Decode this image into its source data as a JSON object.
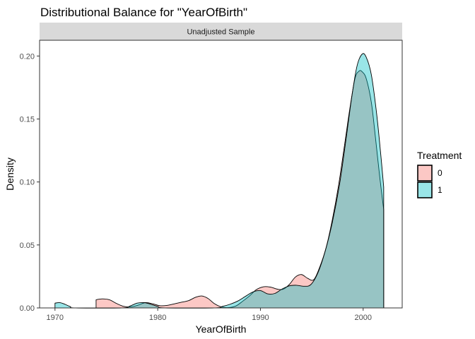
{
  "chart_data": {
    "type": "area",
    "title": "Distributional Balance for \"YearOfBirth\"",
    "facet_label": "Unadjusted Sample",
    "xlabel": "YearOfBirth",
    "ylabel": "Density",
    "xlim": [
      1968.5,
      2003.8
    ],
    "ylim": [
      0,
      0.2125
    ],
    "x_ticks": [
      1970,
      1980,
      1990,
      2000
    ],
    "y_ticks": [
      0.0,
      0.05,
      0.1,
      0.15,
      0.2
    ],
    "y_tick_labels": [
      "0.00",
      "0.05",
      "0.10",
      "0.15",
      "0.20"
    ],
    "grid": false,
    "legend": {
      "title": "Treatment",
      "placement": "right"
    },
    "series": [
      {
        "name": "0",
        "color": "#F8766D",
        "x": [
          1974,
          1974.6,
          1975.3,
          1976,
          1976.7,
          1977.4,
          1978.1,
          1978.8,
          1979.5,
          1980.2,
          1980.9,
          1981.6,
          1982.3,
          1983,
          1983.7,
          1984.3,
          1984.9,
          1985.5,
          1986.2,
          1986.9,
          1987.6,
          1988.3,
          1989,
          1989.6,
          1990.3,
          1991,
          1991.6,
          1992.2,
          1992.8,
          1993.4,
          1994,
          1994.6,
          1995.2,
          1995.8,
          1996.4,
          1997,
          1997.6,
          1998.2,
          1998.7,
          1999.2,
          1999.6,
          1999.9,
          2000.3,
          2000.8,
          2001.2,
          2001.6,
          2002
        ],
        "y": [
          0.0065,
          0.0072,
          0.0065,
          0.0035,
          0.0012,
          0.0008,
          0.0022,
          0.0042,
          0.0033,
          0.0018,
          0.002,
          0.0032,
          0.0045,
          0.0058,
          0.0085,
          0.0095,
          0.0075,
          0.0035,
          0.0008,
          0.0003,
          0.0015,
          0.0055,
          0.01,
          0.0145,
          0.0168,
          0.0165,
          0.015,
          0.0148,
          0.0185,
          0.0245,
          0.0265,
          0.0235,
          0.0225,
          0.033,
          0.048,
          0.07,
          0.097,
          0.13,
          0.158,
          0.182,
          0.188,
          0.1875,
          0.182,
          0.163,
          0.135,
          0.105,
          0.078
        ]
      },
      {
        "name": "1",
        "color": "#00BFC4",
        "x": [
          1970,
          1970.5,
          1971,
          1971.5,
          1972,
          1976.5,
          1977.3,
          1978,
          1978.7,
          1979.3,
          1980,
          1980.7,
          1985.5,
          1986.3,
          1987,
          1987.8,
          1988.6,
          1989.3,
          1990,
          1990.7,
          1991.4,
          1992.1,
          1992.8,
          1993.5,
          1994.2,
          1994.9,
          1995.6,
          1996.3,
          1997,
          1997.7,
          1998.3,
          1998.9,
          1999.4,
          1999.9,
          2000.3,
          2000.8,
          2001.3,
          2001.7,
          2002
        ],
        "y": [
          0.0038,
          0.0042,
          0.0028,
          0.001,
          0.0,
          0.0,
          0.0015,
          0.0038,
          0.0042,
          0.003,
          0.0012,
          0.0,
          0.0,
          0.0012,
          0.0028,
          0.0055,
          0.0095,
          0.0128,
          0.0138,
          0.0112,
          0.0115,
          0.015,
          0.0175,
          0.018,
          0.0172,
          0.0185,
          0.028,
          0.045,
          0.068,
          0.098,
          0.132,
          0.168,
          0.192,
          0.2015,
          0.199,
          0.185,
          0.155,
          0.123,
          0.096
        ]
      }
    ]
  }
}
